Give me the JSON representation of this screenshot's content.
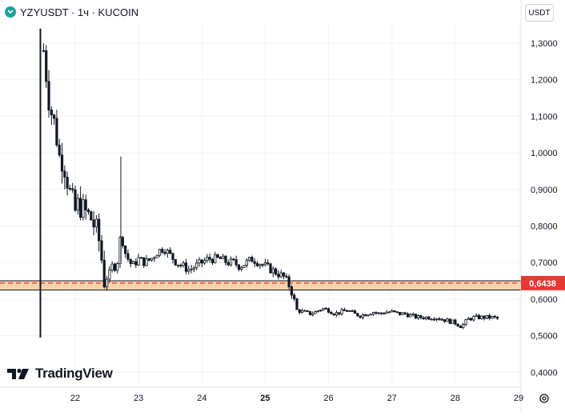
{
  "header": {
    "symbol_text": "YZYUSDT · 1ч · KUCOIN",
    "logo_icon": "kucoin-logo-icon"
  },
  "currency_button": "USDT",
  "watermark": "TradingView",
  "settings_icon": "gear-icon",
  "colors": {
    "candle": "#131722",
    "zone_fill": "#f9c48f",
    "zone_border": "#e53935",
    "price_label_bg": "#e53935",
    "grid": "#f0f3fa"
  },
  "chart_data": {
    "type": "candlestick",
    "x_ticks": [
      {
        "label": "22",
        "pos": 22.0
      },
      {
        "label": "23",
        "pos": 23.0
      },
      {
        "label": "24",
        "pos": 24.0
      },
      {
        "label": "25",
        "pos": 25.0
      },
      {
        "label": "26",
        "pos": 26.0
      },
      {
        "label": "27",
        "pos": 27.0
      },
      {
        "label": "28",
        "pos": 28.0
      },
      {
        "label": "29",
        "pos": 29.0
      }
    ],
    "bold_tick": "25",
    "y_ticks": [
      "1,3000",
      "1,2000",
      "1,1000",
      "1,0000",
      "0,9000",
      "0,8000",
      "0,7000",
      "0,6000",
      "0,5000",
      "0,4000"
    ],
    "y_tick_values": [
      1.3,
      1.2,
      1.1,
      1.0,
      0.9,
      0.8,
      0.7,
      0.6,
      0.5,
      0.4
    ],
    "ylim": [
      0.385,
      1.345
    ],
    "xlim": [
      21.35,
      29.03
    ],
    "first_candle": {
      "x": 21.45,
      "open": 0.62,
      "high": 1.34,
      "low": 0.495,
      "close": 0.62
    },
    "spike_candle": {
      "x": 22.72,
      "high": 0.99,
      "low": 0.7
    },
    "support_zone": {
      "low": 0.625,
      "high": 0.65
    },
    "current_price": "0,6438",
    "current_price_value": 0.6438,
    "price_path": [
      [
        21.5,
        1.28
      ],
      [
        21.55,
        1.2
      ],
      [
        21.6,
        1.12
      ],
      [
        21.65,
        1.1
      ],
      [
        21.7,
        1.05
      ],
      [
        21.75,
        0.99
      ],
      [
        21.8,
        0.98
      ],
      [
        21.85,
        0.95
      ],
      [
        21.9,
        0.9
      ],
      [
        21.95,
        0.87
      ],
      [
        22.0,
        0.84
      ],
      [
        22.05,
        0.86
      ],
      [
        22.1,
        0.85
      ],
      [
        22.15,
        0.84
      ],
      [
        22.2,
        0.83
      ],
      [
        22.25,
        0.82
      ],
      [
        22.3,
        0.8
      ],
      [
        22.35,
        0.78
      ],
      [
        22.4,
        0.74
      ],
      [
        22.45,
        0.65
      ],
      [
        22.5,
        0.66
      ],
      [
        22.55,
        0.67
      ],
      [
        22.6,
        0.7
      ],
      [
        22.65,
        0.68
      ],
      [
        22.72,
        0.78
      ],
      [
        22.8,
        0.72
      ],
      [
        22.9,
        0.69
      ],
      [
        23.0,
        0.71
      ],
      [
        23.1,
        0.7
      ],
      [
        23.2,
        0.71
      ],
      [
        23.3,
        0.73
      ],
      [
        23.4,
        0.74
      ],
      [
        23.5,
        0.72
      ],
      [
        23.6,
        0.7
      ],
      [
        23.7,
        0.69
      ],
      [
        23.8,
        0.68
      ],
      [
        23.9,
        0.69
      ],
      [
        24.0,
        0.7
      ],
      [
        24.1,
        0.71
      ],
      [
        24.2,
        0.71
      ],
      [
        24.3,
        0.71
      ],
      [
        24.4,
        0.7
      ],
      [
        24.5,
        0.7
      ],
      [
        24.6,
        0.69
      ],
      [
        24.7,
        0.7
      ],
      [
        24.8,
        0.71
      ],
      [
        24.9,
        0.7
      ],
      [
        25.0,
        0.69
      ],
      [
        25.1,
        0.68
      ],
      [
        25.2,
        0.67
      ],
      [
        25.3,
        0.66
      ],
      [
        25.4,
        0.63
      ],
      [
        25.5,
        0.57
      ],
      [
        25.6,
        0.565
      ],
      [
        25.7,
        0.56
      ],
      [
        25.8,
        0.565
      ],
      [
        25.9,
        0.575
      ],
      [
        26.0,
        0.57
      ],
      [
        26.1,
        0.56
      ],
      [
        26.2,
        0.565
      ],
      [
        26.3,
        0.57
      ],
      [
        26.4,
        0.56
      ],
      [
        26.5,
        0.555
      ],
      [
        26.6,
        0.56
      ],
      [
        26.7,
        0.565
      ],
      [
        26.8,
        0.56
      ],
      [
        26.9,
        0.565
      ],
      [
        27.0,
        0.565
      ],
      [
        27.1,
        0.56
      ],
      [
        27.2,
        0.56
      ],
      [
        27.3,
        0.555
      ],
      [
        27.4,
        0.55
      ],
      [
        27.5,
        0.55
      ],
      [
        27.6,
        0.55
      ],
      [
        27.7,
        0.55
      ],
      [
        27.8,
        0.545
      ],
      [
        27.9,
        0.54
      ],
      [
        28.0,
        0.535
      ],
      [
        28.1,
        0.525
      ],
      [
        28.2,
        0.545
      ],
      [
        28.3,
        0.55
      ],
      [
        28.4,
        0.55
      ],
      [
        28.5,
        0.55
      ],
      [
        28.6,
        0.55
      ],
      [
        28.7,
        0.545
      ]
    ]
  }
}
